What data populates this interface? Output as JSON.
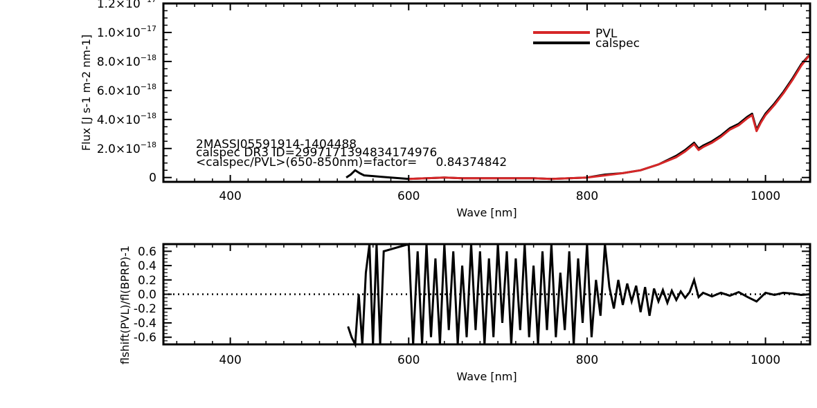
{
  "chart_data": [
    {
      "type": "line",
      "xlabel": "Wave [nm]",
      "ylabel": "Flux [J s-1 m-2 nm-1]",
      "xlim": [
        325,
        1050
      ],
      "ylim": [
        -3e-19,
        1.2e-17
      ],
      "x_ticks": [
        400,
        600,
        800,
        1000
      ],
      "y_ticks": [
        {
          "value": 0,
          "label": "0"
        },
        {
          "value": 2e-18,
          "label": "2.0×10",
          "exp": "−18"
        },
        {
          "value": 4e-18,
          "label": "4.0×10",
          "exp": "−18"
        },
        {
          "value": 6e-18,
          "label": "6.0×10",
          "exp": "−18"
        },
        {
          "value": 8e-18,
          "label": "8.0×10",
          "exp": "−18"
        },
        {
          "value": 1e-17,
          "label": "1.0×10",
          "exp": "−17"
        },
        {
          "value": 1.2e-17,
          "label": "1.2×10",
          "exp": "−17"
        }
      ],
      "legend": {
        "position": "top-right",
        "entries": [
          {
            "name": "PVL",
            "color": "#d62728"
          },
          {
            "name": "calspec",
            "color": "#000000"
          }
        ]
      },
      "annotations": [
        "2MASSJ05591914-1404488",
        "calspec DR3 ID=2997171394834174976",
        "<calspec/PVL>(650-850nm)=factor=     0.84374842"
      ],
      "series": [
        {
          "name": "calspec",
          "color": "#000000",
          "x": [
            530,
            535,
            540,
            545,
            550,
            560,
            570,
            580,
            590,
            600,
            620,
            640,
            660,
            680,
            700,
            720,
            740,
            760,
            780,
            800,
            820,
            840,
            860,
            880,
            900,
            910,
            920,
            925,
            930,
            940,
            950,
            960,
            970,
            980,
            985,
            990,
            995,
            1000,
            1010,
            1020,
            1030,
            1040,
            1050
          ],
          "y": [
            0,
            2e-19,
            5e-19,
            3e-19,
            1.5e-19,
            1e-19,
            5e-20,
            0,
            -5e-20,
            -1e-19,
            -5e-20,
            0,
            -5e-20,
            -5e-20,
            -5e-20,
            -5e-20,
            -5e-20,
            -1e-19,
            -5e-20,
            0,
            2e-19,
            3e-19,
            5e-19,
            9e-19,
            1.5e-18,
            1.9e-18,
            2.4e-18,
            2e-18,
            2.2e-18,
            2.5e-18,
            2.9e-18,
            3.4e-18,
            3.7e-18,
            4.2e-18,
            4.4e-18,
            3.3e-18,
            3.9e-18,
            4.4e-18,
            5.1e-18,
            5.9e-18,
            6.8e-18,
            7.8e-18,
            8.5e-18
          ]
        },
        {
          "name": "PVL",
          "color": "#d62728",
          "x": [
            600,
            620,
            640,
            660,
            680,
            700,
            720,
            740,
            760,
            780,
            800,
            820,
            840,
            860,
            880,
            900,
            910,
            920,
            925,
            930,
            940,
            950,
            960,
            970,
            980,
            985,
            990,
            995,
            1000,
            1010,
            1020,
            1030,
            1040,
            1050
          ],
          "y": [
            -1e-19,
            -5e-20,
            0,
            -5e-20,
            -5e-20,
            -5e-20,
            -5e-20,
            -5e-20,
            -1e-19,
            -5e-20,
            0,
            1.5e-19,
            3e-19,
            5e-19,
            9e-19,
            1.4e-18,
            1.8e-18,
            2.3e-18,
            1.9e-18,
            2.1e-18,
            2.4e-18,
            2.8e-18,
            3.3e-18,
            3.6e-18,
            4.1e-18,
            4.3e-18,
            3.2e-18,
            3.8e-18,
            4.3e-18,
            5e-18,
            5.8e-18,
            6.7e-18,
            7.7e-18,
            8.5e-18
          ]
        }
      ]
    },
    {
      "type": "line",
      "xlabel": "Wave [nm]",
      "ylabel": "flshift(PVL)/fl(BPRP)-1",
      "xlim": [
        325,
        1050
      ],
      "ylim": [
        -0.7,
        0.7
      ],
      "x_ticks": [
        400,
        600,
        800,
        1000
      ],
      "y_ticks": [
        -0.6,
        -0.4,
        -0.2,
        0.0,
        0.2,
        0.4,
        0.6
      ],
      "y_tick_labels": [
        "-0.6",
        "-0.4",
        "-0.2",
        "0.0",
        "0.2",
        "0.4",
        "0.6"
      ],
      "reference_line": {
        "y": 0,
        "style": "dotted"
      },
      "series": [
        {
          "name": "",
          "color": "#000000",
          "x": [
            532,
            536,
            540,
            544,
            548,
            552,
            556,
            560,
            564,
            568,
            572,
            600,
            605,
            610,
            615,
            620,
            625,
            630,
            635,
            640,
            645,
            650,
            655,
            660,
            665,
            670,
            675,
            680,
            685,
            690,
            695,
            700,
            705,
            710,
            715,
            720,
            725,
            730,
            735,
            740,
            745,
            750,
            755,
            760,
            765,
            770,
            775,
            780,
            785,
            790,
            795,
            800,
            805,
            810,
            815,
            820,
            825,
            830,
            835,
            840,
            845,
            850,
            855,
            860,
            865,
            870,
            875,
            880,
            885,
            890,
            895,
            900,
            905,
            910,
            915,
            920,
            925,
            930,
            940,
            950,
            960,
            970,
            980,
            990,
            1000,
            1010,
            1020,
            1030,
            1040,
            1050
          ],
          "y": [
            -0.45,
            -0.6,
            -0.7,
            0.0,
            -0.7,
            0.3,
            0.7,
            -0.7,
            0.7,
            -0.7,
            0.6,
            0.7,
            -0.7,
            0.6,
            -0.7,
            0.7,
            -0.6,
            0.5,
            -0.7,
            0.7,
            -0.5,
            0.6,
            -0.7,
            0.4,
            -0.6,
            0.7,
            -0.5,
            0.6,
            -0.7,
            0.5,
            -0.6,
            0.7,
            -0.4,
            0.6,
            -0.7,
            0.5,
            -0.5,
            0.7,
            -0.6,
            0.4,
            -0.7,
            0.6,
            -0.5,
            0.7,
            -0.6,
            0.3,
            -0.5,
            0.6,
            -0.7,
            0.5,
            -0.4,
            0.7,
            -0.6,
            0.2,
            -0.3,
            0.7,
            0.1,
            -0.2,
            0.2,
            -0.15,
            0.15,
            -0.1,
            0.12,
            -0.25,
            0.1,
            -0.3,
            0.08,
            -0.1,
            0.06,
            -0.12,
            0.05,
            -0.08,
            0.04,
            -0.05,
            0.03,
            0.2,
            -0.04,
            0.02,
            -0.03,
            0.02,
            -0.02,
            0.03,
            -0.04,
            -0.1,
            0.02,
            -0.01,
            0.02,
            0.01,
            -0.01,
            0.0
          ]
        }
      ]
    }
  ]
}
